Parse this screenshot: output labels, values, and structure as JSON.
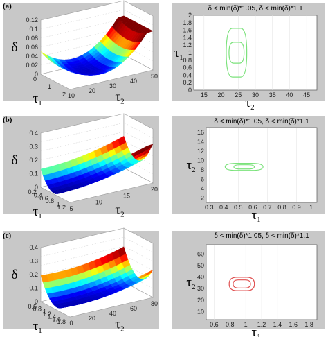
{
  "colors": {
    "panel_bg": "#c8c8c8",
    "plot_bg": "#ffffff",
    "contour_green": "#7be27b",
    "contour_red": "#e05050",
    "colormap": [
      "#00008f",
      "#0000ff",
      "#00ffff",
      "#ffff00",
      "#ff0000",
      "#7f0000"
    ]
  },
  "chart_data": [
    {
      "panel": "(a)",
      "type": "surface",
      "zlabel": "δ",
      "xlabel": "τ1",
      "ylabel": "τ2",
      "zticks": [
        "0",
        "0.02",
        "0.04",
        "0.06",
        "0.08",
        "0.1",
        "0.12"
      ],
      "xticks": [
        "0",
        "1",
        "2"
      ],
      "yticks": [
        "10",
        "20",
        "30",
        "40",
        "50"
      ],
      "zlim": [
        0,
        0.12
      ],
      "xlim": [
        0,
        2
      ],
      "ylim": [
        10,
        50
      ],
      "shape": "valley",
      "minimum_at": {
        "τ1": 1.0,
        "τ2": 25
      }
    },
    {
      "panel": "(a)",
      "type": "contour",
      "title": "δ < min(δ)*1.05,  δ < min(δ)*1.1",
      "xlabel": "τ2",
      "ylabel": "τ1",
      "xticks": [
        "15",
        "20",
        "25",
        "30",
        "35",
        "40",
        "45"
      ],
      "yticks": [
        "0",
        "0.2",
        "0.4",
        "0.6",
        "0.8",
        "1",
        "1.2",
        "1.4",
        "1.6",
        "1.8",
        "2"
      ],
      "xlim": [
        12,
        48
      ],
      "ylim": [
        0,
        2
      ],
      "contours": [
        {
          "level": "1.05",
          "center": [
            24.5,
            1.0
          ],
          "half_width": 2.2,
          "half_height": 0.28
        },
        {
          "level": "1.1",
          "center": [
            24.5,
            1.0
          ],
          "half_width": 3.0,
          "half_height": 0.65
        }
      ]
    },
    {
      "panel": "(b)",
      "type": "surface",
      "zlabel": "δ",
      "xlabel": "τ1",
      "ylabel": "τ2",
      "zticks": [
        "0",
        "0.1",
        "0.2",
        "0.3",
        "0.4"
      ],
      "xticks": [
        "0.2",
        "0.4",
        "0.6",
        "0.8",
        "1",
        "1.2"
      ],
      "yticks": [
        "5",
        "10",
        "15",
        "20"
      ],
      "zlim": [
        0,
        0.4
      ],
      "xlim": [
        0.2,
        1.2
      ],
      "ylim": [
        5,
        20
      ],
      "shape": "valley",
      "minimum_at": {
        "τ1": 0.55,
        "τ2": 9
      }
    },
    {
      "panel": "(b)",
      "type": "contour",
      "title": "δ < min(δ)*1.05,  δ < min(δ)*1.1",
      "xlabel": "τ1",
      "ylabel": "τ2",
      "xticks": [
        "0.3",
        "0.4",
        "0.5",
        "0.6",
        "0.7",
        "0.8",
        "0.9",
        "1"
      ],
      "yticks": [
        "2",
        "4",
        "6",
        "8",
        "10",
        "12",
        "14",
        "16"
      ],
      "xlim": [
        0.28,
        1.04
      ],
      "ylim": [
        1,
        17
      ],
      "contours": [
        {
          "level": "1.05",
          "center": [
            0.54,
            8.6
          ],
          "half_width": 0.07,
          "half_height": 0.45
        },
        {
          "level": "1.1",
          "center": [
            0.54,
            8.6
          ],
          "half_width": 0.13,
          "half_height": 0.75
        }
      ]
    },
    {
      "panel": "(c)",
      "type": "surface",
      "zlabel": "δ",
      "xlabel": "τ1",
      "ylabel": "τ2",
      "zticks": [
        "0",
        "0.1",
        "0.2",
        "0.3",
        "0.4"
      ],
      "xticks": [
        "0.6",
        "0.8",
        "1",
        "1.2",
        "1.4",
        "1.6",
        "1.8"
      ],
      "yticks": [
        "0",
        "20",
        "40",
        "60",
        "80"
      ],
      "zlim": [
        0,
        0.4
      ],
      "xlim": [
        0.6,
        1.8
      ],
      "ylim": [
        0,
        80
      ],
      "shape": "valley",
      "minimum_at": {
        "τ1": 0.95,
        "τ2": 35
      }
    },
    {
      "panel": "(c)",
      "type": "contour",
      "title": "δ < min(δ)*1.05,  δ < min(δ)*1.1",
      "xlabel": "τ1",
      "ylabel": "τ2",
      "xticks": [
        "0.6",
        "0.8",
        "1",
        "1.2",
        "1.4",
        "1.6",
        "1.8"
      ],
      "yticks": [
        "10",
        "20",
        "30",
        "40",
        "50",
        "60"
      ],
      "xlim": [
        0.5,
        1.9
      ],
      "ylim": [
        3,
        68
      ],
      "contours": [
        {
          "level": "1.05",
          "center": [
            0.95,
            34
          ],
          "half_width": 0.11,
          "half_height": 3.5
        },
        {
          "level": "1.1",
          "center": [
            0.95,
            34
          ],
          "half_width": 0.16,
          "half_height": 5.8
        }
      ]
    }
  ]
}
